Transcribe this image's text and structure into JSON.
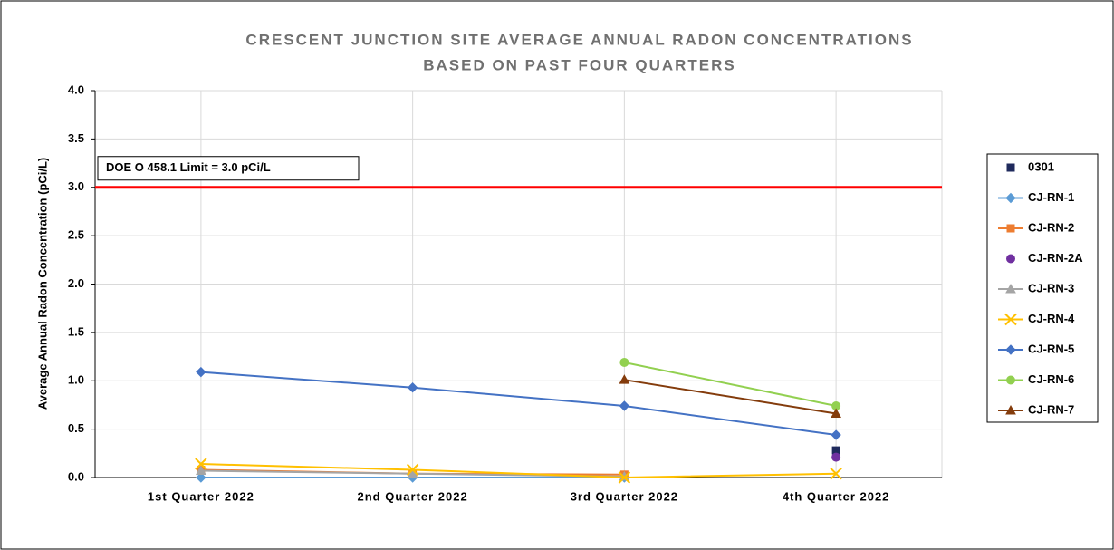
{
  "chart_data": {
    "type": "line",
    "title": [
      "CRESCENT JUNCTION SITE AVERAGE ANNUAL RADON CONCENTRATIONS",
      "BASED ON PAST FOUR QUARTERS"
    ],
    "y_label": "Average Annual Radon Concentration (pCi/L)",
    "categories": [
      "1st Quarter 2022",
      "2nd Quarter 2022",
      "3rd Quarter 2022",
      "4th Quarter 2022"
    ],
    "ylim": [
      0,
      4.0
    ],
    "yticks": [
      {
        "value": 0,
        "label": "0.0"
      },
      0.5,
      {
        "value": 1,
        "label": "1.0"
      },
      1.5,
      {
        "value": 2,
        "label": "2.0"
      },
      2.5,
      {
        "value": 3,
        "label": "3.0"
      },
      3.5,
      {
        "value": 4,
        "label": "4.0"
      }
    ],
    "grid": true,
    "limit": {
      "label": "DOE O 458.1 Limit = 3.0 pCi/L",
      "value": 3.0,
      "color": "#ff0000"
    },
    "series": [
      {
        "name": "0301",
        "color": "#1f2a5c",
        "marker": "square",
        "line": false,
        "values": [
          null,
          null,
          null,
          0.28
        ]
      },
      {
        "name": "CJ-RN-1",
        "color": "#5b9bd5",
        "marker": "diamond",
        "line": true,
        "values": [
          0.0,
          0.0,
          0.0,
          null
        ]
      },
      {
        "name": "CJ-RN-2",
        "color": "#ed7d31",
        "marker": "square",
        "line": true,
        "values": [
          0.08,
          0.04,
          0.03,
          null
        ]
      },
      {
        "name": "CJ-RN-2A",
        "color": "#7030a0",
        "marker": "circle",
        "line": false,
        "values": [
          null,
          null,
          null,
          0.21
        ]
      },
      {
        "name": "CJ-RN-3",
        "color": "#a5a5a5",
        "marker": "triangle",
        "line": true,
        "values": [
          0.07,
          0.04,
          0.01,
          null
        ]
      },
      {
        "name": "CJ-RN-4",
        "color": "#ffc000",
        "marker": "x",
        "line": true,
        "values": [
          0.14,
          0.08,
          0.0,
          0.04
        ]
      },
      {
        "name": "CJ-RN-5",
        "color": "#4472c4",
        "marker": "diamond",
        "line": true,
        "values": [
          1.09,
          0.93,
          0.74,
          0.44
        ]
      },
      {
        "name": "CJ-RN-6",
        "color": "#92d050",
        "marker": "circle",
        "line": true,
        "values": [
          null,
          null,
          1.19,
          0.74
        ]
      },
      {
        "name": "CJ-RN-7",
        "color": "#843c0c",
        "marker": "triangle",
        "line": true,
        "values": [
          null,
          null,
          1.01,
          0.66
        ]
      }
    ]
  }
}
